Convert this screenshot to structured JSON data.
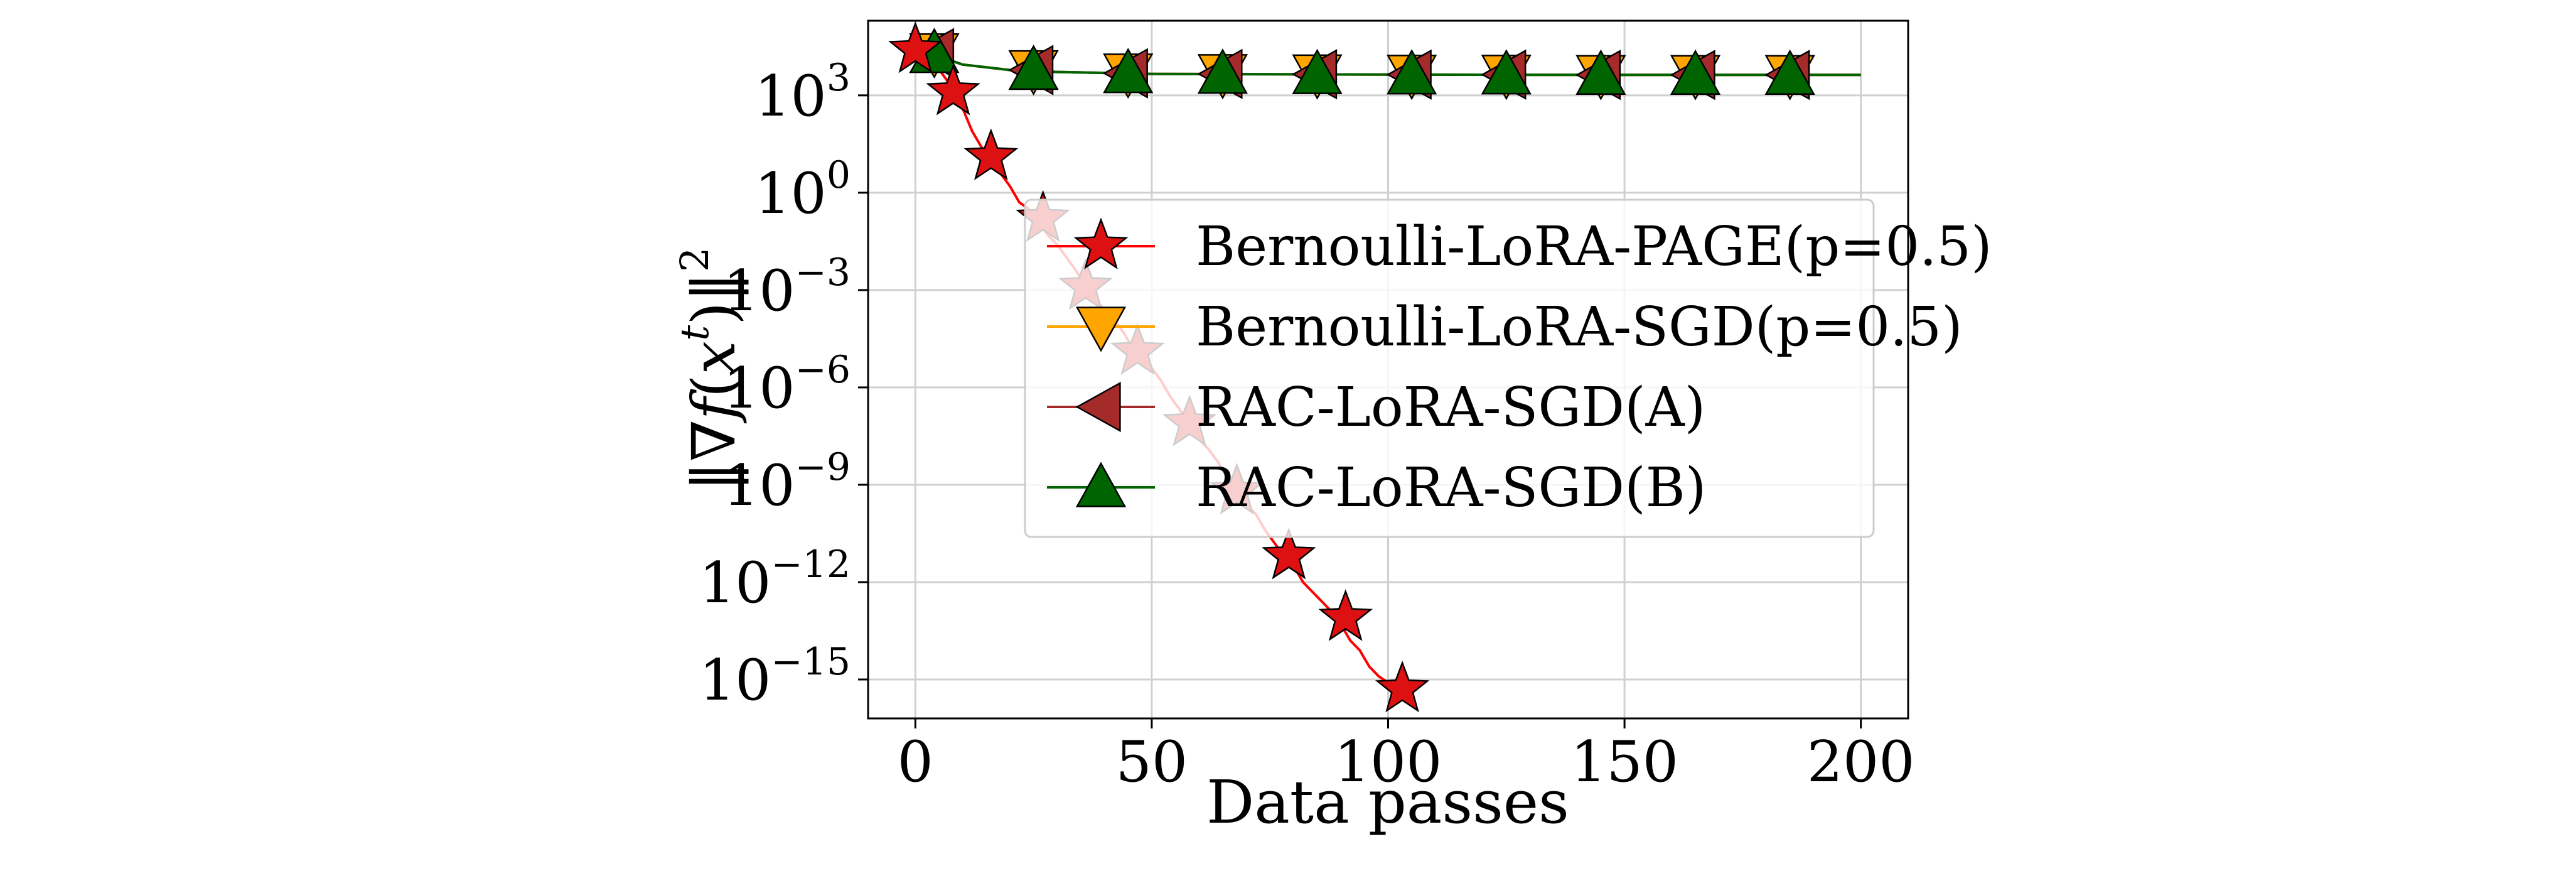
{
  "chart_data": {
    "type": "line",
    "title": "",
    "xlabel": "Data passes",
    "ylabel": "||∇f(x^t)||^2",
    "ylabel_parts": {
      "prefix": "‖∇",
      "f": "f",
      "open": "(",
      "x": "x",
      "t": "t",
      "close": ")‖",
      "sq": "2"
    },
    "yscale": "log",
    "xlim": [
      -10,
      210
    ],
    "ylim_log10": [
      -16.2,
      5.3
    ],
    "grid": true,
    "legend_position": "center",
    "xticks": [
      {
        "value": 0,
        "label": "0"
      },
      {
        "value": 50,
        "label": "50"
      },
      {
        "value": 100,
        "label": "100"
      },
      {
        "value": 150,
        "label": "150"
      },
      {
        "value": 200,
        "label": "200"
      }
    ],
    "yticks": [
      {
        "exp": 3,
        "base": "10",
        "power": "3"
      },
      {
        "exp": 0,
        "base": "10",
        "power": "0"
      },
      {
        "exp": -3,
        "base": "10",
        "power": "−3"
      },
      {
        "exp": -6,
        "base": "10",
        "power": "−6"
      },
      {
        "exp": -9,
        "base": "10",
        "power": "−9"
      },
      {
        "exp": -12,
        "base": "10",
        "power": "−12"
      },
      {
        "exp": -15,
        "base": "10",
        "power": "−15"
      }
    ],
    "series": [
      {
        "name": "Bernoulli-LoRA-PAGE(p=0.5)",
        "color": "#ff0000",
        "marker": "star",
        "marker_fill": "#dd1111",
        "line": [
          [
            0,
            4.4
          ],
          [
            2,
            4.3
          ],
          [
            4,
            4.0
          ],
          [
            6,
            3.6
          ],
          [
            8,
            3.2
          ],
          [
            10,
            2.6
          ],
          [
            12,
            1.9
          ],
          [
            14,
            1.4
          ],
          [
            16,
            1.1
          ],
          [
            18,
            0.6
          ],
          [
            20,
            0.2
          ],
          [
            22,
            -0.3
          ],
          [
            24,
            -0.5
          ],
          [
            26,
            -0.9
          ],
          [
            28,
            -1.3
          ],
          [
            30,
            -1.6
          ],
          [
            32,
            -2.0
          ],
          [
            34,
            -2.4
          ],
          [
            36,
            -2.9
          ],
          [
            38,
            -3.3
          ],
          [
            40,
            -3.6
          ],
          [
            42,
            -3.9
          ],
          [
            44,
            -4.3
          ],
          [
            46,
            -4.8
          ],
          [
            48,
            -5.1
          ],
          [
            50,
            -5.4
          ],
          [
            52,
            -5.8
          ],
          [
            54,
            -6.3
          ],
          [
            56,
            -6.7
          ],
          [
            58,
            -7.2
          ],
          [
            60,
            -7.6
          ],
          [
            62,
            -7.9
          ],
          [
            64,
            -8.3
          ],
          [
            66,
            -8.8
          ],
          [
            68,
            -9.2
          ],
          [
            70,
            -9.6
          ],
          [
            72,
            -9.9
          ],
          [
            74,
            -10.4
          ],
          [
            76,
            -10.8
          ],
          [
            78,
            -11.2
          ],
          [
            80,
            -11.5
          ],
          [
            82,
            -12.0
          ],
          [
            84,
            -12.3
          ],
          [
            86,
            -12.6
          ],
          [
            88,
            -12.9
          ],
          [
            90,
            -13.3
          ],
          [
            92,
            -13.8
          ],
          [
            94,
            -14.1
          ],
          [
            96,
            -14.6
          ],
          [
            98,
            -14.9
          ],
          [
            100,
            -15.1
          ],
          [
            103,
            -15.3
          ]
        ],
        "markers": [
          [
            0,
            4.4
          ],
          [
            8,
            3.1
          ],
          [
            16,
            1.1
          ],
          [
            27,
            -0.8
          ],
          [
            36,
            -2.9
          ],
          [
            47,
            -4.9
          ],
          [
            58,
            -7.1
          ],
          [
            68,
            -9.2
          ],
          [
            79,
            -11.2
          ],
          [
            91,
            -13.1
          ],
          [
            103,
            -15.3
          ]
        ]
      },
      {
        "name": "Bernoulli-LoRA-SGD(p=0.5)",
        "color": "#ffa500",
        "marker": "triangle-down",
        "marker_fill": "#ffa500",
        "line": [
          [
            0,
            4.45
          ],
          [
            5,
            4.2
          ],
          [
            10,
            3.95
          ],
          [
            20,
            3.78
          ],
          [
            30,
            3.72
          ],
          [
            50,
            3.66
          ],
          [
            100,
            3.64
          ],
          [
            150,
            3.63
          ],
          [
            200,
            3.63
          ]
        ],
        "markers": [
          [
            4,
            4.3
          ],
          [
            25,
            3.78
          ],
          [
            45,
            3.68
          ],
          [
            65,
            3.66
          ],
          [
            85,
            3.65
          ],
          [
            105,
            3.64
          ],
          [
            125,
            3.64
          ],
          [
            145,
            3.63
          ],
          [
            165,
            3.63
          ],
          [
            185,
            3.63
          ]
        ]
      },
      {
        "name": "RAC-LoRA-SGD(A)",
        "color": "#a52a2a",
        "marker": "triangle-left",
        "marker_fill": "#a52a2a",
        "line": [
          [
            0,
            4.45
          ],
          [
            5,
            4.2
          ],
          [
            10,
            3.95
          ],
          [
            20,
            3.78
          ],
          [
            30,
            3.72
          ],
          [
            50,
            3.66
          ],
          [
            100,
            3.64
          ],
          [
            150,
            3.63
          ],
          [
            200,
            3.63
          ]
        ],
        "markers": [
          [
            4,
            4.3
          ],
          [
            25,
            3.78
          ],
          [
            45,
            3.68
          ],
          [
            65,
            3.66
          ],
          [
            85,
            3.65
          ],
          [
            105,
            3.64
          ],
          [
            125,
            3.64
          ],
          [
            145,
            3.63
          ],
          [
            165,
            3.63
          ],
          [
            185,
            3.63
          ]
        ]
      },
      {
        "name": "RAC-LoRA-SGD(B)",
        "color": "#006400",
        "marker": "triangle-up",
        "marker_fill": "#006400",
        "line": [
          [
            0,
            4.45
          ],
          [
            5,
            4.2
          ],
          [
            10,
            3.95
          ],
          [
            20,
            3.78
          ],
          [
            30,
            3.72
          ],
          [
            50,
            3.66
          ],
          [
            100,
            3.64
          ],
          [
            150,
            3.63
          ],
          [
            200,
            3.63
          ]
        ],
        "markers": [
          [
            4,
            4.3
          ],
          [
            25,
            3.78
          ],
          [
            45,
            3.68
          ],
          [
            65,
            3.66
          ],
          [
            85,
            3.65
          ],
          [
            105,
            3.64
          ],
          [
            125,
            3.64
          ],
          [
            145,
            3.63
          ],
          [
            165,
            3.63
          ],
          [
            185,
            3.63
          ]
        ]
      }
    ]
  }
}
